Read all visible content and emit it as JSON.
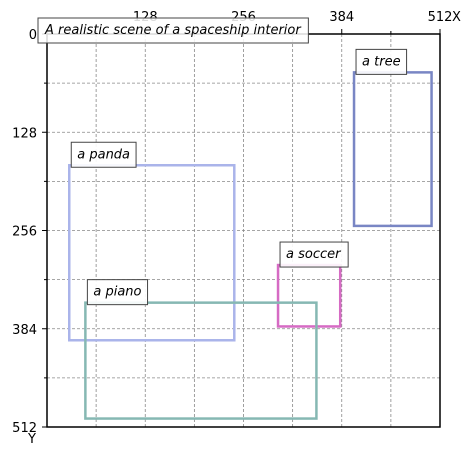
{
  "chart_data": {
    "type": "bounding-boxes",
    "title": "A realistic scene of a spaceship interior",
    "x_axis": {
      "label": "X",
      "range": [
        0,
        512
      ],
      "position": "top",
      "ticks": [
        0,
        128,
        256,
        384,
        512
      ],
      "tick_labels": [
        "",
        "128",
        "256",
        "384",
        "512"
      ]
    },
    "y_axis": {
      "label": "Y",
      "range": [
        0,
        512
      ],
      "inverted": true,
      "ticks": [
        0,
        128,
        256,
        384,
        512
      ],
      "tick_labels": [
        "0",
        "128",
        "256",
        "384",
        "512"
      ]
    },
    "grid": true,
    "grid_step": 64,
    "boxes": [
      {
        "label": "a tree",
        "x0": 400,
        "y0": 50,
        "x1": 501,
        "y1": 250,
        "color": "#7986c4"
      },
      {
        "label": "a panda",
        "x0": 29,
        "y0": 171,
        "x1": 244,
        "y1": 399,
        "color": "#aab4ea"
      },
      {
        "label": "a soccer",
        "x0": 301,
        "y0": 301,
        "x1": 382,
        "y1": 381,
        "color": "#d66bc4"
      },
      {
        "label": "a piano",
        "x0": 50,
        "y0": 350,
        "x1": 351,
        "y1": 501,
        "color": "#86b8b3"
      }
    ]
  }
}
